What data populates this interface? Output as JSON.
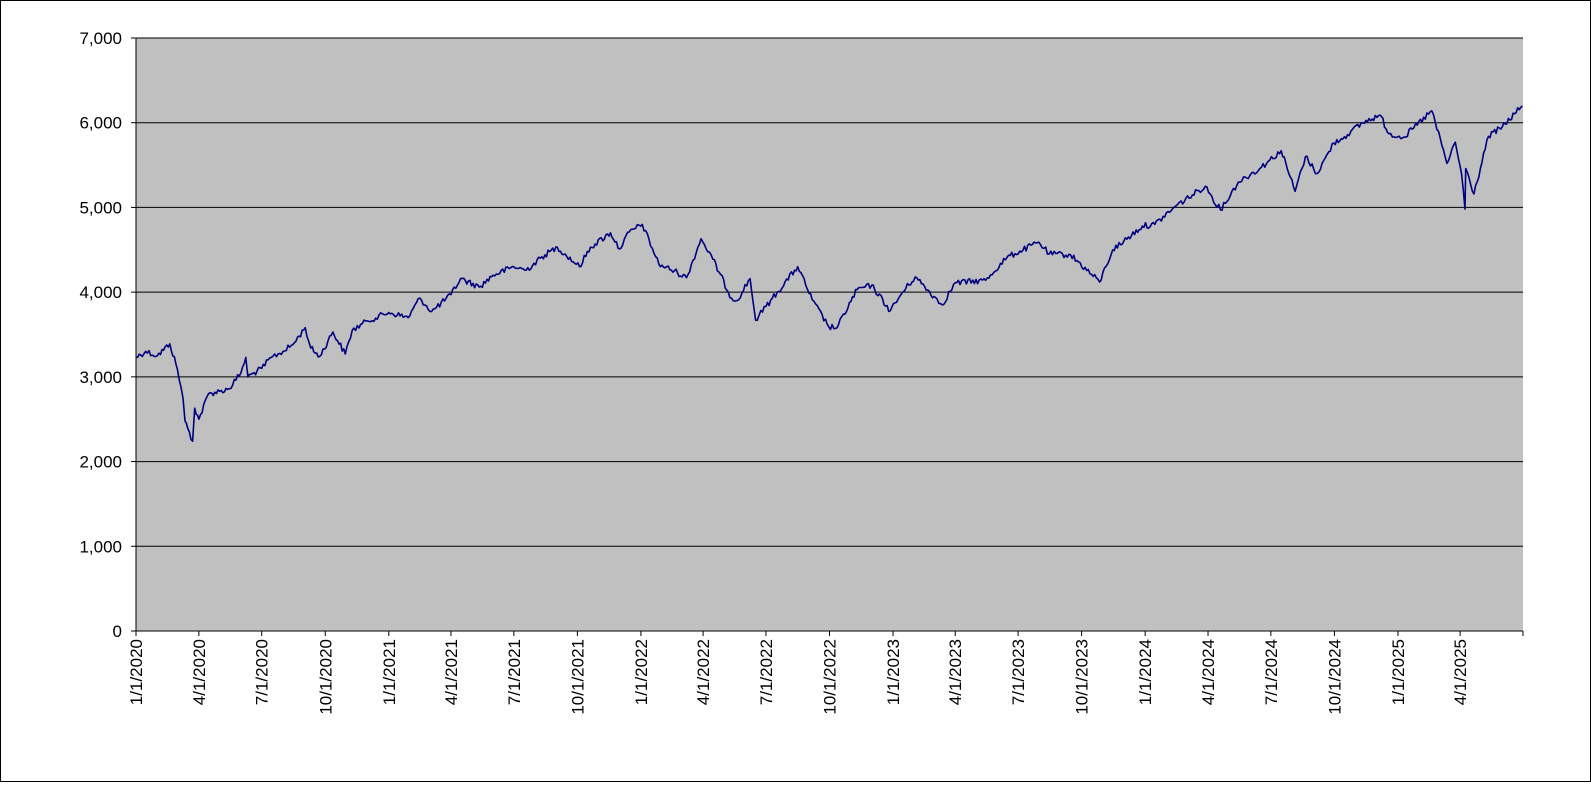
{
  "chart_data": {
    "type": "line",
    "title": "",
    "xlabel": "",
    "ylabel": "",
    "ylim": [
      0,
      7000
    ],
    "xlim": [
      "2020-01-01",
      "2025-07-01"
    ],
    "grid": {
      "horizontal": true,
      "vertical": false
    },
    "legend": "none",
    "colors": {
      "plot_background": "#C0C0C0",
      "line": "#000080",
      "gridline": "#000000"
    },
    "y_ticks": [
      0,
      1000,
      2000,
      3000,
      4000,
      5000,
      6000,
      7000
    ],
    "y_tick_labels": [
      "0",
      "1,000",
      "2,000",
      "3,000",
      "4,000",
      "5,000",
      "6,000",
      "7,000"
    ],
    "x_tick_dates": [
      "2020-01-01",
      "2020-04-01",
      "2020-07-01",
      "2020-10-01",
      "2021-01-01",
      "2021-04-01",
      "2021-07-01",
      "2021-10-01",
      "2022-01-01",
      "2022-04-01",
      "2022-07-01",
      "2022-10-01",
      "2023-01-01",
      "2023-04-01",
      "2023-07-01",
      "2023-10-01",
      "2024-01-01",
      "2024-04-01",
      "2024-07-01",
      "2024-10-01",
      "2025-01-01",
      "2025-04-01"
    ],
    "x_tick_labels": [
      "1/1/2020",
      "4/1/2020",
      "7/1/2020",
      "10/1/2020",
      "1/1/2021",
      "4/1/2021",
      "7/1/2021",
      "10/1/2021",
      "1/1/2022",
      "4/1/2022",
      "7/1/2022",
      "10/1/2022",
      "1/1/2023",
      "4/1/2023",
      "7/1/2023",
      "10/1/2023",
      "1/1/2024",
      "4/1/2024",
      "7/1/2024",
      "10/1/2024",
      "1/1/2025",
      "4/1/2025"
    ],
    "series": [
      {
        "x": [
          "2020-01-01",
          "2020-01-15",
          "2020-02-01",
          "2020-02-19",
          "2020-03-01",
          "2020-03-09",
          "2020-03-12",
          "2020-03-16",
          "2020-03-23",
          "2020-03-26",
          "2020-04-01",
          "2020-04-15",
          "2020-05-01",
          "2020-05-15",
          "2020-06-01",
          "2020-06-08",
          "2020-06-11",
          "2020-07-01",
          "2020-07-15",
          "2020-08-01",
          "2020-08-15",
          "2020-09-02",
          "2020-09-10",
          "2020-09-23",
          "2020-10-12",
          "2020-10-30",
          "2020-11-09",
          "2020-12-01",
          "2021-01-01",
          "2021-01-29",
          "2021-02-15",
          "2021-03-04",
          "2021-04-01",
          "2021-04-15",
          "2021-05-12",
          "2021-06-01",
          "2021-07-01",
          "2021-07-19",
          "2021-08-15",
          "2021-09-02",
          "2021-10-04",
          "2021-10-20",
          "2021-11-18",
          "2021-12-01",
          "2021-12-15",
          "2022-01-03",
          "2022-01-27",
          "2022-02-23",
          "2022-03-08",
          "2022-03-29",
          "2022-04-15",
          "2022-05-12",
          "2022-05-20",
          "2022-06-08",
          "2022-06-16",
          "2022-07-01",
          "2022-08-16",
          "2022-09-06",
          "2022-09-30",
          "2022-10-12",
          "2022-11-10",
          "2022-12-01",
          "2022-12-28",
          "2023-01-15",
          "2023-02-02",
          "2023-03-13",
          "2023-04-01",
          "2023-05-15",
          "2023-06-15",
          "2023-07-31",
          "2023-08-15",
          "2023-09-15",
          "2023-10-27",
          "2023-11-15",
          "2023-12-01",
          "2023-12-28",
          "2024-01-15",
          "2024-02-15",
          "2024-03-28",
          "2024-04-19",
          "2024-05-15",
          "2024-06-15",
          "2024-07-16",
          "2024-08-05",
          "2024-08-20",
          "2024-09-06",
          "2024-09-30",
          "2024-10-20",
          "2024-11-11",
          "2024-12-06",
          "2024-12-19",
          "2025-01-10",
          "2025-02-19",
          "2025-03-13",
          "2025-03-25",
          "2025-04-03",
          "2025-04-08",
          "2025-04-09",
          "2025-04-21",
          "2025-05-12",
          "2025-06-01",
          "2025-06-30"
        ],
        "values": [
          3230,
          3300,
          3250,
          3390,
          3090,
          2750,
          2480,
          2390,
          2240,
          2630,
          2500,
          2800,
          2830,
          2860,
          3050,
          3230,
          3000,
          3100,
          3230,
          3300,
          3380,
          3580,
          3340,
          3240,
          3530,
          3270,
          3550,
          3660,
          3760,
          3700,
          3930,
          3770,
          3970,
          4160,
          4060,
          4200,
          4300,
          4260,
          4440,
          4530,
          4300,
          4530,
          4700,
          4510,
          4710,
          4800,
          4330,
          4230,
          4170,
          4630,
          4390,
          3930,
          3900,
          4160,
          3670,
          3830,
          4300,
          3910,
          3590,
          3580,
          4030,
          4080,
          3780,
          4000,
          4180,
          3850,
          4110,
          4140,
          4410,
          4590,
          4450,
          4440,
          4120,
          4500,
          4600,
          4780,
          4800,
          5020,
          5250,
          4970,
          5300,
          5460,
          5670,
          5190,
          5600,
          5400,
          5760,
          5860,
          6000,
          6090,
          5870,
          5830,
          6140,
          5520,
          5770,
          5400,
          4980,
          5460,
          5160,
          5840,
          5950,
          6200
        ]
      }
    ]
  }
}
